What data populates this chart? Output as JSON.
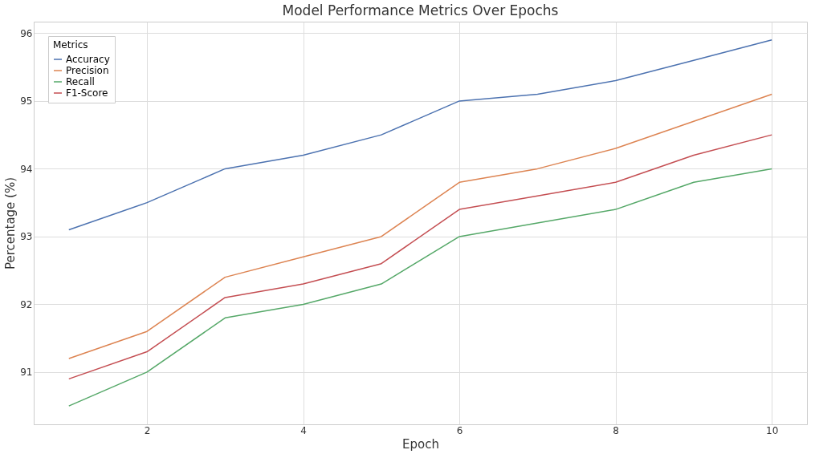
{
  "chart_data": {
    "type": "line",
    "title": "Model Performance Metrics Over Epochs",
    "xlabel": "Epoch",
    "ylabel": "Percentage (%)",
    "legend_title": "Metrics",
    "x": [
      1,
      2,
      3,
      4,
      5,
      6,
      7,
      8,
      9,
      10
    ],
    "series": [
      {
        "name": "Accuracy",
        "color": "#4c72b0",
        "values": [
          93.1,
          93.5,
          94.0,
          94.2,
          94.5,
          95.0,
          95.1,
          95.3,
          95.6,
          95.9
        ]
      },
      {
        "name": "Precision",
        "color": "#dd8452",
        "values": [
          91.2,
          91.6,
          92.4,
          92.7,
          93.0,
          93.8,
          94.0,
          94.3,
          94.7,
          95.1
        ]
      },
      {
        "name": "Recall",
        "color": "#55a868",
        "values": [
          90.5,
          91.0,
          91.8,
          92.0,
          92.3,
          93.0,
          93.2,
          93.4,
          93.8,
          94.0
        ]
      },
      {
        "name": "F1-Score",
        "color": "#c44e52",
        "values": [
          90.9,
          91.3,
          92.1,
          92.3,
          92.6,
          93.4,
          93.6,
          93.8,
          94.2,
          94.5
        ]
      }
    ],
    "xlim": [
      0.55,
      10.45
    ],
    "ylim": [
      90.23,
      96.17
    ],
    "xticks": [
      2,
      4,
      6,
      8,
      10
    ],
    "yticks": [
      91,
      92,
      93,
      94,
      95,
      96
    ],
    "grid": true,
    "legend": "top left",
    "marker": "none",
    "line_style": "solid"
  }
}
